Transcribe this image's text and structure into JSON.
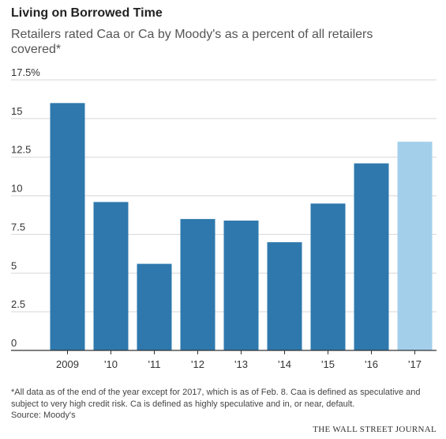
{
  "header": {
    "title": "Living on Borrowed Time",
    "subtitle": "Retailers rated Caa or Ca by Moody's as a percent of all retailers covered*"
  },
  "footer": {
    "footnote": "*All data as of the end of the year except for 2017, which is as of Feb. 8. Caa is defined as speculative and subject to very high credit risk. Ca is defined as highly speculative and in, or near, default.",
    "source": "Source: Moody's",
    "brand": "THE WALL STREET JOURNAL"
  },
  "colors": {
    "bar": "#2e78ad",
    "bar_highlight": "#a3cfeb",
    "grid": "#d7d7d7",
    "axis": "#333333",
    "tick_text": "#333333"
  },
  "chart_data": {
    "type": "bar",
    "title": "Living on Borrowed Time",
    "subtitle": "Retailers rated Caa or Ca by Moody's as a percent of all retailers covered*",
    "categories": [
      "2009",
      "'10",
      "'11",
      "'12",
      "'13",
      "'14",
      "'15",
      "'16",
      "'17"
    ],
    "values": [
      16.0,
      9.6,
      5.6,
      8.5,
      8.4,
      7.0,
      9.5,
      12.1,
      13.5
    ],
    "highlight_index": 8,
    "ylim": [
      0,
      17.5
    ],
    "yticks": [
      0,
      2.5,
      5,
      7.5,
      10,
      12.5,
      15,
      17.5
    ],
    "ytick_labels": [
      "0",
      "2.5",
      "5",
      "7.5",
      "10",
      "12.5",
      "15",
      "17.5%"
    ],
    "xlabel": "",
    "ylabel": "",
    "grid": true,
    "legend": "none"
  }
}
